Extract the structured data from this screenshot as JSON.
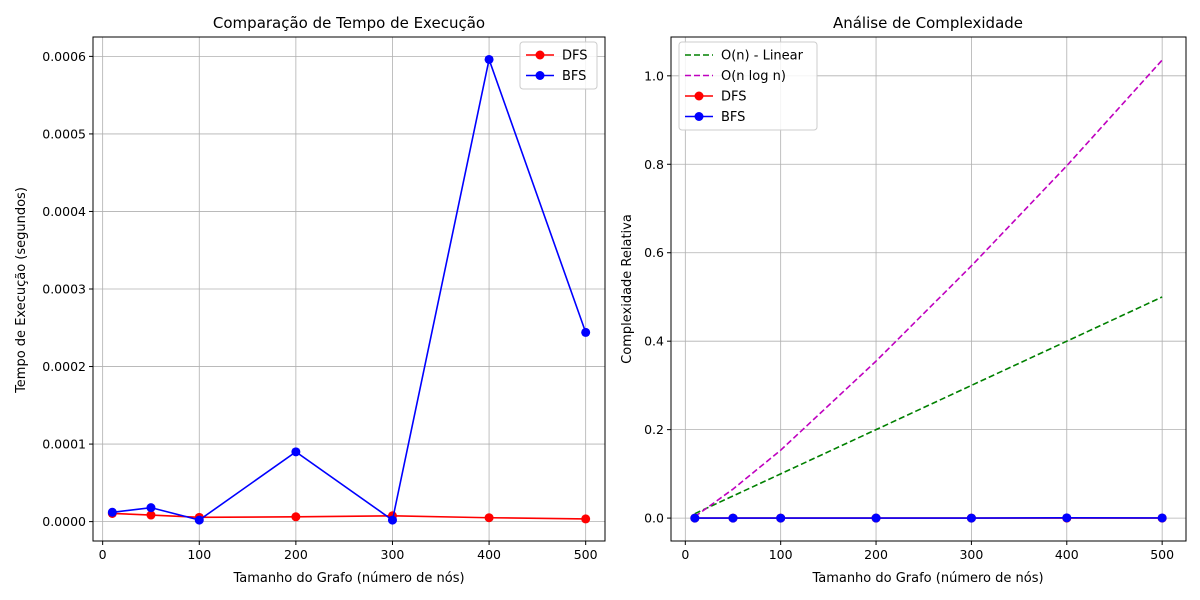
{
  "chart_data": [
    {
      "type": "line",
      "title": "Comparação de Tempo de Execução",
      "xlabel": "Tamanho do Grafo (número de nós)",
      "ylabel": "Tempo de Execução (segundos)",
      "xlim": [
        -10,
        520
      ],
      "ylim": [
        -2.5e-05,
        0.000625
      ],
      "xticks": [
        0,
        100,
        200,
        300,
        400,
        500
      ],
      "yticks": [
        0.0,
        0.0001,
        0.0002,
        0.0003,
        0.0004,
        0.0005,
        0.0006
      ],
      "ytick_labels": [
        "0.0000",
        "0.0001",
        "0.0002",
        "0.0003",
        "0.0004",
        "0.0005",
        "0.0006"
      ],
      "grid": true,
      "legend_position": "top-right",
      "x": [
        10,
        50,
        100,
        200,
        300,
        400,
        500
      ],
      "series": [
        {
          "name": "DFS",
          "color": "#ff0000",
          "style": "solid",
          "marker": true,
          "values": [
            1.05e-05,
            8.5e-06,
            5.5e-06,
            6.2e-06,
            7.5e-06,
            5e-06,
            3.5e-06
          ]
        },
        {
          "name": "BFS",
          "color": "#0000ff",
          "style": "solid",
          "marker": true,
          "values": [
            1.2e-05,
            1.8e-05,
            2e-06,
            9e-05,
            2e-06,
            0.000596,
            0.000244
          ]
        }
      ]
    },
    {
      "type": "line",
      "title": "Análise de Complexidade",
      "xlabel": "Tamanho do Grafo (número de nós)",
      "ylabel": "Complexidade Relativa",
      "xlim": [
        -15,
        525
      ],
      "ylim": [
        -0.0518,
        1.0878
      ],
      "xticks": [
        0,
        100,
        200,
        300,
        400,
        500
      ],
      "yticks": [
        0.0,
        0.2,
        0.4,
        0.6,
        0.8,
        1.0
      ],
      "ytick_labels": [
        "0.0",
        "0.2",
        "0.4",
        "0.6",
        "0.8",
        "1.0"
      ],
      "grid": true,
      "legend_position": "top-left",
      "x": [
        10,
        50,
        100,
        200,
        300,
        400,
        500
      ],
      "series": [
        {
          "name": "O(n) - Linear",
          "color": "#008000",
          "style": "dashed",
          "marker": false,
          "values": [
            0.01,
            0.05,
            0.1,
            0.2,
            0.3,
            0.4,
            0.5
          ]
        },
        {
          "name": "O(n log n)",
          "color": "#bf00bf",
          "style": "dashed",
          "marker": false,
          "values": [
            0.0033,
            0.0655,
            0.1535,
            0.3549,
            0.5703,
            0.7966,
            1.0356
          ]
        },
        {
          "name": "DFS",
          "color": "#ff0000",
          "style": "solid",
          "marker": true,
          "values": [
            1.05e-05,
            8.5e-06,
            5.5e-06,
            6.2e-06,
            7.5e-06,
            5e-06,
            3.5e-06
          ]
        },
        {
          "name": "BFS",
          "color": "#0000ff",
          "style": "solid",
          "marker": true,
          "values": [
            1.2e-05,
            1.8e-05,
            2e-06,
            9e-05,
            2e-06,
            0.000596,
            0.000244
          ]
        }
      ]
    }
  ]
}
